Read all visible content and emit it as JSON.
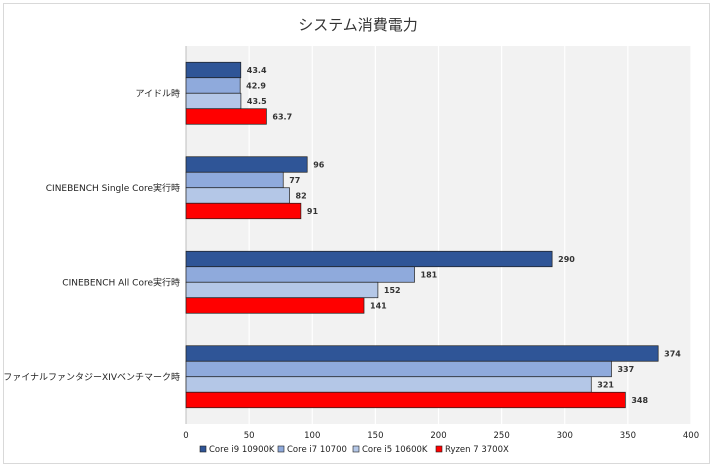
{
  "chart_data": {
    "type": "bar",
    "orientation": "horizontal",
    "title": "システム消費電力",
    "categories": [
      "アイドル時",
      "CINEBENCH Single Core実行時",
      "CINEBENCH All Core実行時",
      "ファイナルファンタジーXIVベンチマーク時"
    ],
    "series": [
      {
        "name": "Core i9 10900K",
        "color": "#2f5597",
        "values": [
          43.4,
          96,
          290,
          374
        ]
      },
      {
        "name": "Core i7 10700",
        "color": "#8faadc",
        "values": [
          42.9,
          77,
          181,
          337
        ]
      },
      {
        "name": "Core i5 10600K",
        "color": "#b4c7e7",
        "values": [
          43.5,
          82,
          152,
          321
        ]
      },
      {
        "name": "Ryzen 7 3700X",
        "color": "#ff0000",
        "values": [
          63.7,
          91,
          141,
          348
        ]
      }
    ],
    "xlim": [
      0,
      400
    ],
    "xticks": [
      0,
      50,
      100,
      150,
      200,
      250,
      300,
      350,
      400
    ],
    "grid": true,
    "legend_position": "bottom",
    "background": "#f2f2f2"
  }
}
